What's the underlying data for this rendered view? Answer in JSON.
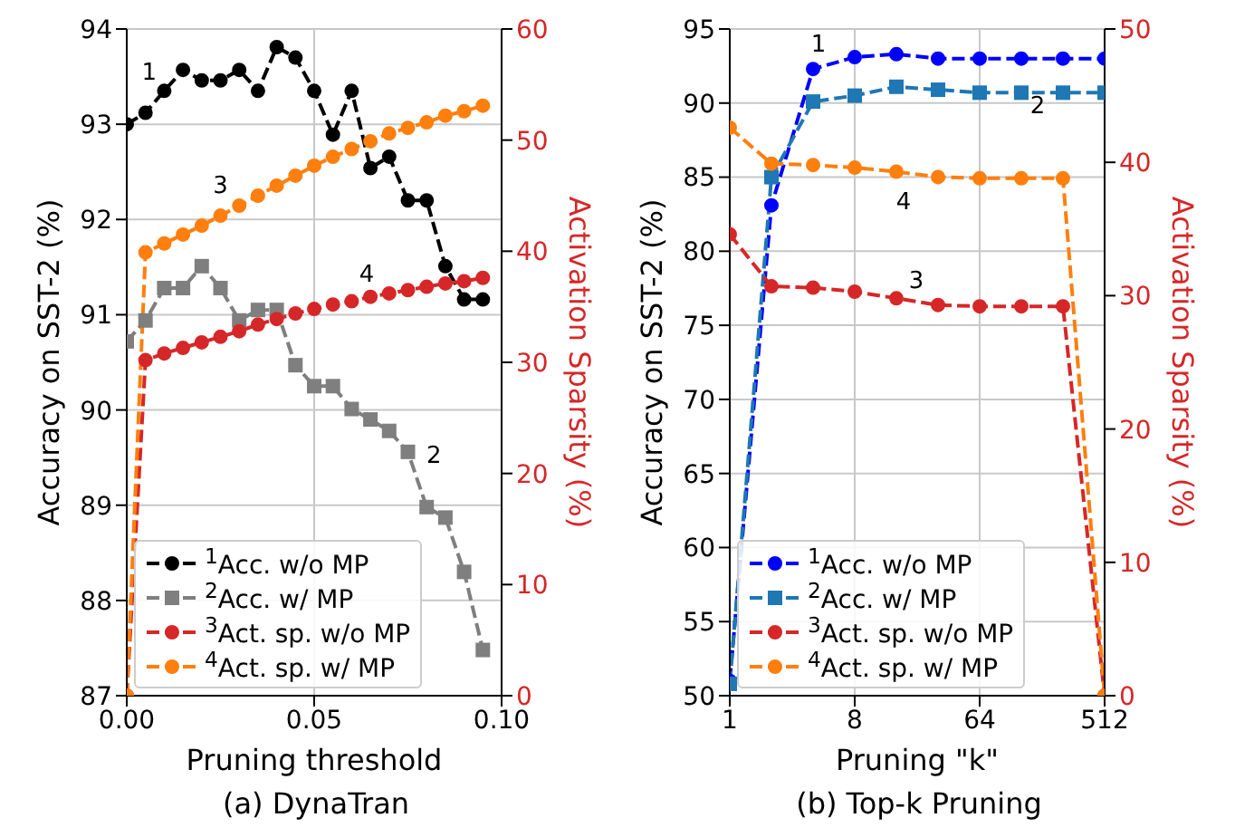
{
  "chart_data": [
    {
      "type": "line",
      "title": "(a) DynaTran",
      "xlabel": "Pruning threshold",
      "ylabel": "Accuracy on SST-2 (%)",
      "y2label": "Activation Sparsity (%)",
      "x": [
        0,
        0.005,
        0.01,
        0.015,
        0.02,
        0.025,
        0.03,
        0.035,
        0.04,
        0.045,
        0.05,
        0.055,
        0.06,
        0.065,
        0.07,
        0.075,
        0.08,
        0.085,
        0.09,
        0.095
      ],
      "series": [
        {
          "name": "$^{1}$Acc. w/o MP",
          "color": "#000000",
          "marker": "circle",
          "line_style": "dashed",
          "values": [
            93.0,
            93.12,
            93.35,
            93.57,
            93.46,
            93.46,
            93.57,
            93.35,
            93.81,
            93.7,
            93.35,
            92.89,
            93.35,
            92.54,
            92.66,
            92.2,
            92.2,
            91.51,
            91.16,
            91.16
          ]
        },
        {
          "name": "$^{2}$Acc. w/ MP",
          "color": "#7f7f7f",
          "marker": "square",
          "line_style": "dashed",
          "values": [
            90.72,
            90.94,
            91.28,
            91.28,
            91.51,
            91.28,
            90.94,
            91.05,
            91.05,
            90.47,
            90.25,
            90.25,
            90.01,
            89.9,
            89.78,
            89.56,
            88.98,
            88.87,
            88.3,
            87.48
          ]
        },
        {
          "name": "$^{3}$Act. sp. w/o MP",
          "color": "#d62728",
          "marker": "circle",
          "line_style": "dashed",
          "axis": "y2",
          "values": [
            0,
            30.2,
            30.8,
            31.3,
            31.8,
            32.3,
            32.8,
            33.4,
            33.9,
            34.4,
            34.8,
            35.2,
            35.5,
            35.9,
            36.2,
            36.5,
            36.8,
            37.1,
            37.3,
            37.6
          ]
        },
        {
          "name": "$^{4}$Act. sp. w/ MP",
          "color": "#ff7f0e",
          "marker": "circle",
          "line_style": "dashed",
          "axis": "y2",
          "values": [
            0,
            39.9,
            40.7,
            41.5,
            42.3,
            43.2,
            44.1,
            45.0,
            45.9,
            46.8,
            47.7,
            48.5,
            49.2,
            49.9,
            50.6,
            51.1,
            51.6,
            52.2,
            52.6,
            53.1
          ]
        }
      ],
      "xlim": [
        0,
        0.1
      ],
      "xticks": [
        {
          "value": 0,
          "label": "0.00"
        },
        {
          "value": 0.05,
          "label": "0.05"
        },
        {
          "value": 0.1,
          "label": "0.10"
        }
      ],
      "ylim": [
        87,
        94
      ],
      "yticks": [
        87,
        88,
        89,
        90,
        91,
        92,
        93,
        94
      ],
      "y2lim": [
        0,
        60
      ],
      "y2ticks": [
        0,
        10,
        20,
        30,
        40,
        50,
        60
      ],
      "annotations": [
        "1",
        "2",
        "3",
        "4"
      ],
      "grid": true,
      "legend": "bottom left"
    },
    {
      "type": "line",
      "title": "(b) Top-k Pruning",
      "xlabel": "Pruning \"k\"",
      "ylabel": "Accuracy on SST-2 (%)",
      "y2label": "Activation Sparsity (%)",
      "log": "x",
      "x": [
        1,
        2,
        4,
        8,
        16,
        32,
        64,
        128,
        256,
        512
      ],
      "series": [
        {
          "name": "$^{1}$Acc. w/o MP",
          "color": "#0000ff",
          "marker": "circle",
          "line_style": "dashed",
          "values": [
            51.0,
            83.1,
            92.3,
            93.1,
            93.3,
            93.0,
            93.0,
            93.0,
            93.0,
            93.0
          ]
        },
        {
          "name": "$^{2}$Acc. w/ MP",
          "color": "#1f77b4",
          "marker": "square",
          "line_style": "dashed",
          "values": [
            50.8,
            85.0,
            90.1,
            90.5,
            91.1,
            90.9,
            90.7,
            90.7,
            90.7,
            90.7
          ]
        },
        {
          "name": "$^{3}$Act. sp. w/o MP",
          "color": "#d62728",
          "marker": "circle",
          "line_style": "dashed",
          "axis": "y2",
          "values": [
            34.6,
            30.7,
            30.6,
            30.3,
            29.8,
            29.3,
            29.2,
            29.2,
            29.2,
            0
          ]
        },
        {
          "name": "$^{4}$Act. sp. w/ MP",
          "color": "#ff7f0e",
          "marker": "circle",
          "line_style": "dashed",
          "axis": "y2",
          "values": [
            42.6,
            39.9,
            39.8,
            39.6,
            39.3,
            38.9,
            38.8,
            38.8,
            38.8,
            0
          ]
        }
      ],
      "xlim": [
        1,
        512
      ],
      "xticks": [
        1,
        8,
        64,
        512
      ],
      "ylim": [
        50,
        95
      ],
      "yticks": [
        50,
        55,
        60,
        65,
        70,
        75,
        80,
        85,
        90,
        95
      ],
      "y2lim": [
        0,
        50
      ],
      "y2ticks": [
        0,
        10,
        20,
        30,
        40,
        50
      ],
      "annotations": [
        "1",
        "2",
        "3",
        "4"
      ],
      "grid": true,
      "legend": "bottom left"
    }
  ]
}
